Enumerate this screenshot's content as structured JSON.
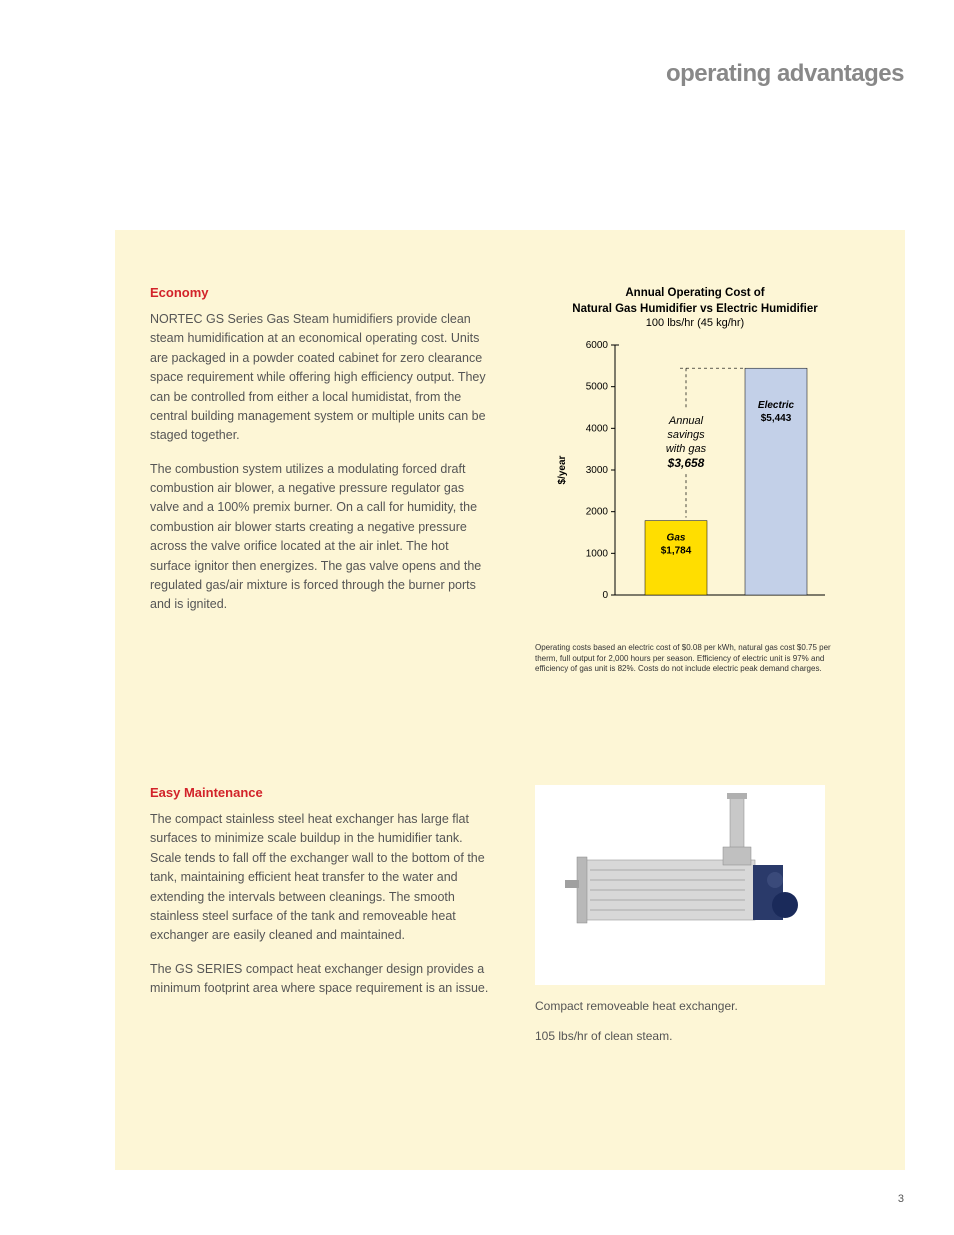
{
  "page": {
    "title": "operating advantages",
    "number": "3"
  },
  "economy": {
    "heading": "Economy",
    "para1": "NORTEC GS Series Gas Steam humidifiers provide clean steam humidification at an economical operating cost. Units are packaged in a powder coated cabinet for zero clearance space requirement while offering high efficiency output. They can be controlled from either a local humidistat, from the central building management system or multiple units can be staged together.",
    "para2": "The combustion system utilizes a modulating forced draft combustion air blower, a negative pressure regulator gas valve and a 100% premix burner. On a call for humidity, the combustion air blower starts creating a negative pressure across the valve orifice located at the air inlet. The hot surface ignitor then energizes. The gas valve opens and the regulated gas/air mixture is forced through the burner ports and is ignited."
  },
  "maintenance": {
    "heading": "Easy Maintenance",
    "para1": "The compact stainless steel heat exchanger has large flat surfaces to minimize scale buildup in the humidifier tank. Scale tends to fall off the exchanger wall to the bottom of the tank, maintaining efficient heat transfer to the water and extending the intervals between cleanings. The smooth stainless steel surface of the tank and removeable heat exchanger are easily cleaned and maintained.",
    "para2": "The GS SERIES compact heat exchanger design provides a minimum footprint area where space requirement is an issue.",
    "caption1": "Compact removeable heat exchanger.",
    "caption2": "105 lbs/hr of clean steam."
  },
  "chart": {
    "type": "bar",
    "title_line1": "Annual Operating Cost of",
    "title_line2": "Natural Gas Humidifier vs Electric Humidifier",
    "subtitle": "100 lbs/hr (45 kg/hr)",
    "ylabel": "$/year",
    "ylim": [
      0,
      6000
    ],
    "ytick_step": 1000,
    "yticks": [
      "0",
      "1000",
      "2000",
      "3000",
      "4000",
      "5000",
      "6000"
    ],
    "bars": [
      {
        "name": "Gas",
        "value": 1784,
        "label_top": "Gas",
        "label_val": "$1,784",
        "color": "#ffde00"
      },
      {
        "name": "Electric",
        "value": 5443,
        "label_top": "Electric",
        "label_val": "$5,443",
        "color": "#c3d0e8"
      }
    ],
    "savings_label1": "Annual",
    "savings_label2": "savings",
    "savings_label3": "with gas",
    "savings_value": "$3,658",
    "axis_color": "#000000",
    "tick_fontsize": 10,
    "label_fontsize": 10,
    "bar_label_fontsize": 10,
    "note": "Operating costs based an electric cost of $0.08 per kWh, natural gas cost $0.75 per therm, full output for 2,000 hours per season. Efficiency of electric unit is 97% and efficiency of gas unit is 82%. Costs do not include electric peak demand charges."
  }
}
